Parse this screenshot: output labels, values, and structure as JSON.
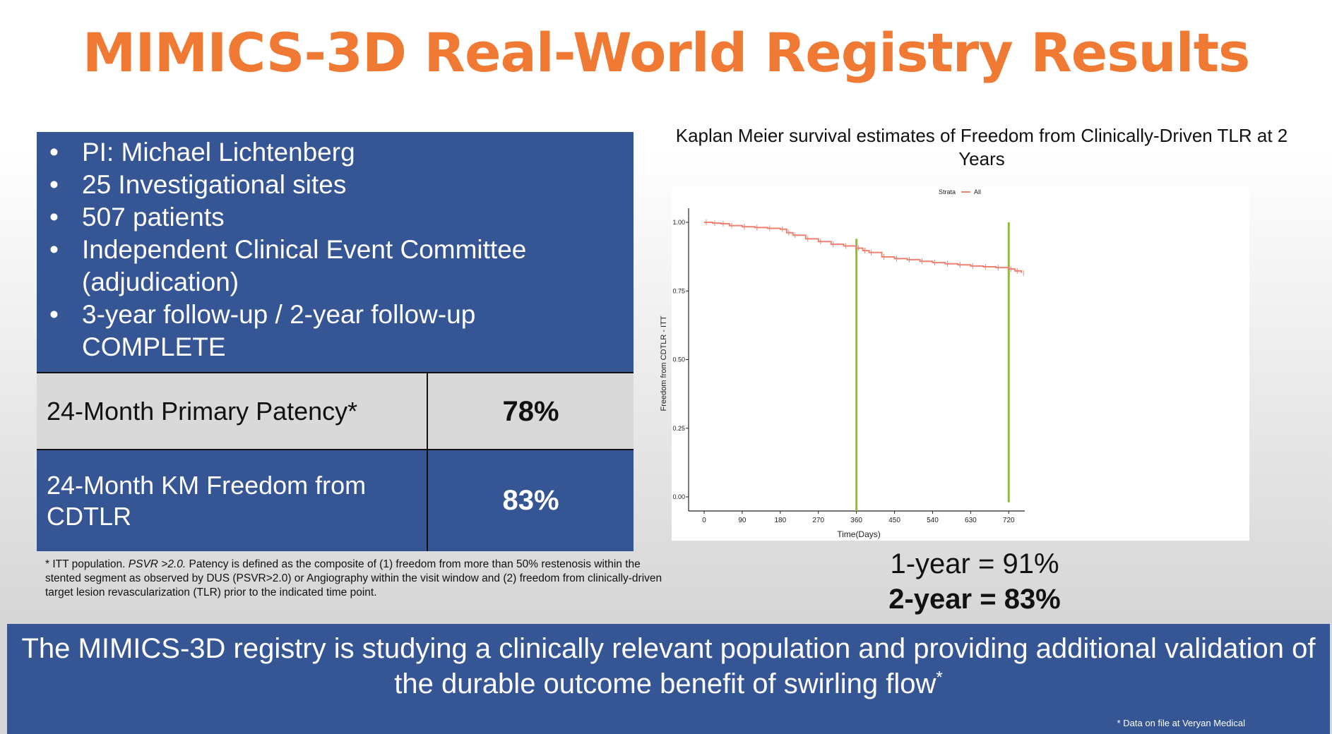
{
  "title": "MIMICS-3D Real-World Registry Results",
  "info": {
    "bullets": [
      "PI: Michael Lichtenberg",
      "25 Investigational sites",
      "507 patients",
      "Independent Clinical Event Committee (adjudication)",
      "3-year follow-up / 2-year follow-up COMPLETE"
    ]
  },
  "table": [
    {
      "label": "24-Month Primary Patency*",
      "value": "78%"
    },
    {
      "label": "24-Month KM Freedom from CDTLR",
      "value": "83%"
    }
  ],
  "footnote": {
    "prefix": "* ITT population. ",
    "italic": "PSVR >2.0.",
    "rest": "  Patency is defined as the composite of (1) freedom from more than 50% restenosis within the stented segment as observed by DUS (PSVR>2.0) or Angiography within the visit window and (2) freedom from clinically-driven target lesion revascularization (TLR) prior to the indicated time point."
  },
  "chart_data": {
    "type": "line",
    "title": "Kaplan Meier survival estimates of Freedom from Clinically-Driven TLR at 2 Years",
    "xlabel": "Time(Days)",
    "ylabel": "Freedom from CDTLR - ITT",
    "legend": {
      "title": "Strata",
      "entries": [
        "All"
      ],
      "placement": "top"
    },
    "xticks": [
      0,
      90,
      180,
      270,
      360,
      450,
      540,
      630,
      720
    ],
    "yticks": [
      "0.00",
      "0.25",
      "0.50",
      "0.75",
      "1.00"
    ],
    "xlim": [
      -35,
      760
    ],
    "ylim": [
      -0.05,
      1.05
    ],
    "series": [
      {
        "name": "All",
        "color": "#f08070",
        "x": [
          0,
          20,
          40,
          60,
          90,
          120,
          150,
          180,
          195,
          210,
          240,
          270,
          300,
          330,
          360,
          375,
          390,
          420,
          450,
          480,
          510,
          540,
          570,
          600,
          630,
          660,
          690,
          720,
          735,
          750
        ],
        "y": [
          1.0,
          0.997,
          0.995,
          0.988,
          0.984,
          0.981,
          0.978,
          0.975,
          0.962,
          0.953,
          0.94,
          0.93,
          0.92,
          0.914,
          0.906,
          0.897,
          0.89,
          0.874,
          0.868,
          0.864,
          0.858,
          0.853,
          0.849,
          0.845,
          0.841,
          0.838,
          0.835,
          0.83,
          0.823,
          0.816
        ]
      }
    ],
    "vlines": {
      "x": [
        360,
        720
      ],
      "color": "#8fc31f"
    },
    "grid": false
  },
  "results": {
    "one_year": "1-year = 91%",
    "two_year": "2-year = 83%"
  },
  "banner": {
    "text": "The MIMICS-3D registry is studying a clinically relevant population and providing additional validation of the durable outcome benefit of swirling flow",
    "sup": "*",
    "note": "* Data on file at Veryan Medical"
  }
}
